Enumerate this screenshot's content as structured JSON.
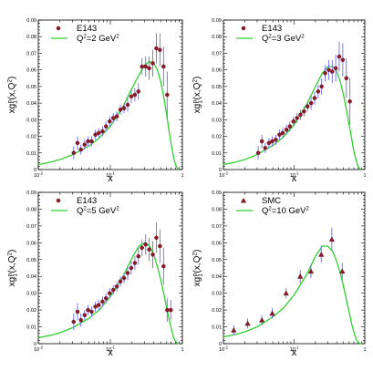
{
  "chart_data": [
    {
      "type": "scatter",
      "xscale": "log",
      "xlim": [
        0.01,
        1
      ],
      "ylim": [
        0,
        0.09
      ],
      "xlabel": "x",
      "ylabel": "xg1p(x,Q2)",
      "xticklabels": [
        "10-2",
        "10-1",
        "1"
      ],
      "yticklabels": [
        "0",
        "0.01",
        "0.02",
        "0.03",
        "0.04",
        "0.05",
        "0.06",
        "0.07",
        "0.08",
        "0.09"
      ],
      "legend": {
        "placement": "top-left",
        "data_label": "E143",
        "curve_label": "Q2=2 GeV2"
      },
      "marker": "circle",
      "series": [
        {
          "kind": "data",
          "x": [
            0.031,
            0.035,
            0.039,
            0.044,
            0.049,
            0.055,
            0.062,
            0.069,
            0.078,
            0.087,
            0.098,
            0.11,
            0.123,
            0.138,
            0.155,
            0.174,
            0.195,
            0.219,
            0.245,
            0.275,
            0.309,
            0.346,
            0.388,
            0.435,
            0.488,
            0.548,
            0.615
          ],
          "y": [
            0.01,
            0.016,
            0.012,
            0.015,
            0.017,
            0.017,
            0.021,
            0.022,
            0.023,
            0.026,
            0.029,
            0.031,
            0.032,
            0.036,
            0.037,
            0.039,
            0.044,
            0.045,
            0.047,
            0.062,
            0.062,
            0.061,
            0.064,
            0.073,
            0.072,
            0.062,
            0.045
          ],
          "err": [
            0.004,
            0.004,
            0.003,
            0.003,
            0.003,
            0.003,
            0.003,
            0.003,
            0.003,
            0.003,
            0.003,
            0.003,
            0.003,
            0.003,
            0.003,
            0.004,
            0.004,
            0.004,
            0.005,
            0.005,
            0.006,
            0.007,
            0.008,
            0.009,
            0.01,
            0.012,
            0.014
          ]
        },
        {
          "kind": "curve",
          "x": [
            0.01,
            0.015,
            0.02,
            0.03,
            0.05,
            0.07,
            0.1,
            0.15,
            0.2,
            0.25,
            0.3,
            0.35,
            0.4,
            0.45,
            0.5,
            0.55,
            0.6,
            0.65,
            0.7,
            0.75,
            0.8,
            0.85,
            0.9
          ],
          "y": [
            0.003,
            0.0045,
            0.006,
            0.009,
            0.014,
            0.019,
            0.026,
            0.038,
            0.049,
            0.057,
            0.063,
            0.065,
            0.064,
            0.06,
            0.053,
            0.044,
            0.034,
            0.024,
            0.015,
            0.008,
            0.003,
            0.001,
            0.0
          ]
        }
      ]
    },
    {
      "type": "scatter",
      "xscale": "log",
      "xlim": [
        0.01,
        1
      ],
      "ylim": [
        0,
        0.09
      ],
      "xlabel": "x",
      "ylabel": "xg1p(x,Q2)",
      "xticklabels": [
        "10-2",
        "10-1",
        "1"
      ],
      "yticklabels": [
        "0",
        "0.01",
        "0.02",
        "0.03",
        "0.04",
        "0.05",
        "0.06",
        "0.07",
        "0.08",
        "0.09"
      ],
      "legend": {
        "placement": "top-left",
        "data_label": "E143",
        "curve_label": "Q2=3 GeV2"
      },
      "marker": "circle",
      "series": [
        {
          "kind": "data",
          "x": [
            0.031,
            0.035,
            0.039,
            0.044,
            0.049,
            0.055,
            0.062,
            0.069,
            0.078,
            0.087,
            0.098,
            0.11,
            0.123,
            0.138,
            0.155,
            0.174,
            0.195,
            0.219,
            0.245,
            0.275,
            0.309,
            0.346,
            0.388,
            0.435,
            0.488,
            0.548,
            0.615
          ],
          "y": [
            0.01,
            0.017,
            0.013,
            0.016,
            0.017,
            0.018,
            0.021,
            0.022,
            0.024,
            0.026,
            0.029,
            0.031,
            0.033,
            0.035,
            0.038,
            0.04,
            0.043,
            0.047,
            0.05,
            0.058,
            0.06,
            0.059,
            0.061,
            0.068,
            0.066,
            0.055,
            0.041
          ],
          "err": [
            0.004,
            0.004,
            0.003,
            0.003,
            0.003,
            0.003,
            0.003,
            0.003,
            0.003,
            0.003,
            0.003,
            0.003,
            0.003,
            0.003,
            0.003,
            0.004,
            0.004,
            0.004,
            0.005,
            0.005,
            0.006,
            0.007,
            0.008,
            0.009,
            0.01,
            0.012,
            0.014
          ]
        },
        {
          "kind": "curve",
          "x": [
            0.01,
            0.015,
            0.02,
            0.03,
            0.05,
            0.07,
            0.1,
            0.15,
            0.2,
            0.25,
            0.3,
            0.35,
            0.4,
            0.45,
            0.5,
            0.55,
            0.6,
            0.65,
            0.7,
            0.75,
            0.8,
            0.85,
            0.9
          ],
          "y": [
            0.003,
            0.0045,
            0.006,
            0.009,
            0.0145,
            0.0195,
            0.027,
            0.039,
            0.05,
            0.058,
            0.062,
            0.062,
            0.059,
            0.053,
            0.045,
            0.036,
            0.027,
            0.019,
            0.011,
            0.006,
            0.002,
            0.0005,
            0.0
          ]
        }
      ]
    },
    {
      "type": "scatter",
      "xscale": "log",
      "xlim": [
        0.01,
        1
      ],
      "ylim": [
        0,
        0.09
      ],
      "xlabel": "x",
      "ylabel": "xg1p(x,Q2)",
      "xticklabels": [
        "10-2",
        "10-1",
        "1"
      ],
      "yticklabels": [
        "0",
        "0.01",
        "0.02",
        "0.03",
        "0.04",
        "0.05",
        "0.06",
        "0.07",
        "0.08",
        "0.09"
      ],
      "legend": {
        "placement": "top-left",
        "data_label": "E143",
        "curve_label": "Q2=5 GeV2"
      },
      "marker": "circle",
      "series": [
        {
          "kind": "data",
          "x": [
            0.031,
            0.035,
            0.039,
            0.044,
            0.049,
            0.055,
            0.062,
            0.069,
            0.078,
            0.087,
            0.098,
            0.11,
            0.123,
            0.138,
            0.155,
            0.174,
            0.195,
            0.219,
            0.245,
            0.275,
            0.309,
            0.346,
            0.388,
            0.435,
            0.488,
            0.548,
            0.615,
            0.69
          ],
          "y": [
            0.013,
            0.019,
            0.014,
            0.017,
            0.02,
            0.019,
            0.022,
            0.023,
            0.025,
            0.027,
            0.03,
            0.032,
            0.034,
            0.037,
            0.039,
            0.042,
            0.045,
            0.048,
            0.052,
            0.057,
            0.059,
            0.056,
            0.053,
            0.063,
            0.058,
            0.046,
            0.02,
            0.02
          ],
          "err": [
            0.005,
            0.005,
            0.004,
            0.003,
            0.003,
            0.003,
            0.003,
            0.003,
            0.003,
            0.003,
            0.003,
            0.003,
            0.003,
            0.003,
            0.003,
            0.004,
            0.004,
            0.004,
            0.005,
            0.005,
            0.006,
            0.007,
            0.008,
            0.009,
            0.01,
            0.011,
            0.007,
            0.006
          ]
        },
        {
          "kind": "curve",
          "x": [
            0.01,
            0.015,
            0.02,
            0.03,
            0.05,
            0.07,
            0.1,
            0.15,
            0.2,
            0.25,
            0.3,
            0.35,
            0.4,
            0.45,
            0.5,
            0.55,
            0.6,
            0.65,
            0.7,
            0.75,
            0.8,
            0.85,
            0.9
          ],
          "y": [
            0.0035,
            0.005,
            0.0065,
            0.0095,
            0.015,
            0.02,
            0.028,
            0.04,
            0.051,
            0.058,
            0.06,
            0.058,
            0.053,
            0.046,
            0.038,
            0.03,
            0.022,
            0.015,
            0.009,
            0.004,
            0.0015,
            0.0003,
            0.0
          ]
        }
      ]
    },
    {
      "type": "scatter",
      "xscale": "log",
      "xlim": [
        0.01,
        1
      ],
      "ylim": [
        0,
        0.09
      ],
      "xlabel": "x",
      "ylabel": "xg1p(x,Q2)",
      "xticklabels": [
        "10-2",
        "10-1",
        "1"
      ],
      "yticklabels": [
        "0",
        "0.01",
        "0.02",
        "0.03",
        "0.04",
        "0.05",
        "0.06",
        "0.07",
        "0.08",
        "0.09"
      ],
      "legend": {
        "placement": "top-left",
        "data_label": "SMC",
        "curve_label": "Q2=10 GeV2"
      },
      "marker": "triangle",
      "series": [
        {
          "kind": "data",
          "x": [
            0.014,
            0.022,
            0.035,
            0.049,
            0.077,
            0.122,
            0.173,
            0.242,
            0.342,
            0.48
          ],
          "y": [
            0.008,
            0.012,
            0.014,
            0.018,
            0.03,
            0.04,
            0.043,
            0.053,
            0.062,
            0.043
          ],
          "err": [
            0.003,
            0.003,
            0.003,
            0.003,
            0.003,
            0.004,
            0.004,
            0.005,
            0.007,
            0.005
          ]
        },
        {
          "kind": "curve",
          "x": [
            0.01,
            0.015,
            0.02,
            0.03,
            0.05,
            0.07,
            0.1,
            0.15,
            0.2,
            0.25,
            0.3,
            0.35,
            0.4,
            0.45,
            0.5,
            0.55,
            0.6,
            0.65,
            0.7,
            0.75,
            0.8,
            0.85,
            0.9
          ],
          "y": [
            0.004,
            0.0055,
            0.007,
            0.01,
            0.016,
            0.021,
            0.029,
            0.041,
            0.052,
            0.058,
            0.058,
            0.055,
            0.049,
            0.042,
            0.034,
            0.026,
            0.019,
            0.012,
            0.007,
            0.003,
            0.001,
            0.0002,
            0.0
          ]
        }
      ]
    }
  ]
}
